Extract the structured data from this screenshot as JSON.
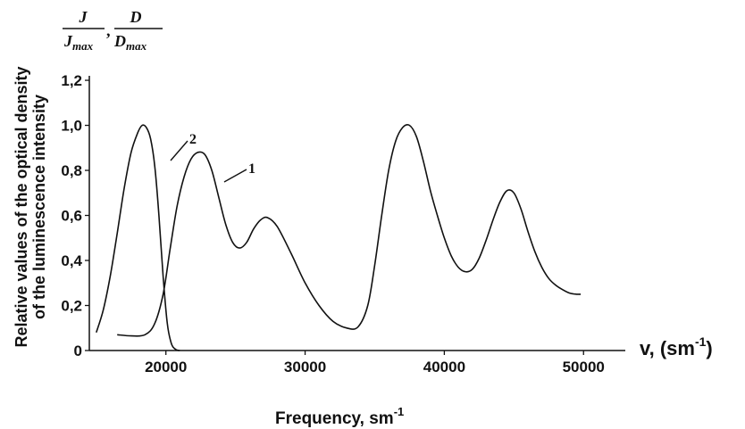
{
  "chart_data": {
    "type": "line",
    "title": "",
    "ylabel_lines": [
      "Relative values of the optical density",
      "of the luminescence intensity"
    ],
    "y_fraction_labels": {
      "first": {
        "numerator": "J",
        "denominator": "J",
        "denominator_sub": "max"
      },
      "separator": ",",
      "second": {
        "numerator": "D",
        "denominator": "D",
        "denominator_sub": "max"
      }
    },
    "x_axis_label": {
      "text": "Frequency, sm",
      "sup": "-1"
    },
    "x_unit_label": {
      "text": "v, (sm",
      "sup": "-1",
      "close": ")"
    },
    "xlim": [
      14500,
      53000
    ],
    "ylim": [
      0,
      1.22
    ],
    "x_ticks": [
      20000,
      30000,
      40000,
      50000
    ],
    "x_tick_labels": [
      "20000",
      "30000",
      "40000",
      "50000"
    ],
    "y_ticks": [
      0,
      0.2,
      0.4,
      0.6,
      0.8,
      1.0,
      1.2
    ],
    "y_tick_labels": [
      "0",
      "0,2",
      "0,4",
      "0,6",
      "0,8",
      "1,0",
      "1,2"
    ],
    "grid": false,
    "legend": "none",
    "line_color": "#111111",
    "series": [
      {
        "label": "1",
        "x": [
          16500,
          17500,
          18500,
          19200,
          19800,
          20300,
          20800,
          21300,
          21800,
          22300,
          22800,
          23300,
          23800,
          24300,
          24800,
          25300,
          25800,
          26300,
          26800,
          27300,
          28000,
          29000,
          30000,
          31000,
          32000,
          33000,
          33800,
          34500,
          35000,
          35500,
          36000,
          36500,
          37000,
          37500,
          38000,
          38500,
          39000,
          39500,
          40000,
          40500,
          41000,
          41500,
          42000,
          42500,
          43000,
          43500,
          44000,
          44500,
          45000,
          45500,
          46000,
          46500,
          47000,
          47500,
          48000,
          48500,
          49000,
          49500,
          49800
        ],
        "y": [
          0.07,
          0.065,
          0.07,
          0.12,
          0.25,
          0.45,
          0.64,
          0.77,
          0.85,
          0.88,
          0.87,
          0.8,
          0.68,
          0.56,
          0.48,
          0.455,
          0.48,
          0.54,
          0.58,
          0.59,
          0.55,
          0.43,
          0.3,
          0.2,
          0.13,
          0.1,
          0.105,
          0.2,
          0.38,
          0.6,
          0.8,
          0.93,
          0.99,
          1.0,
          0.95,
          0.84,
          0.71,
          0.6,
          0.5,
          0.42,
          0.37,
          0.35,
          0.36,
          0.41,
          0.49,
          0.58,
          0.66,
          0.71,
          0.7,
          0.63,
          0.53,
          0.44,
          0.37,
          0.32,
          0.29,
          0.27,
          0.255,
          0.25,
          0.25
        ]
      },
      {
        "label": "2",
        "x": [
          15000,
          15500,
          16000,
          16500,
          17000,
          17500,
          18000,
          18300,
          18600,
          18900,
          19200,
          19500,
          19800,
          20100,
          20400,
          20700,
          21000
        ],
        "y": [
          0.08,
          0.18,
          0.33,
          0.52,
          0.72,
          0.88,
          0.97,
          1.0,
          0.99,
          0.94,
          0.82,
          0.6,
          0.33,
          0.12,
          0.03,
          0.005,
          0.0
        ]
      }
    ],
    "annotations": [
      "1",
      "2"
    ]
  }
}
